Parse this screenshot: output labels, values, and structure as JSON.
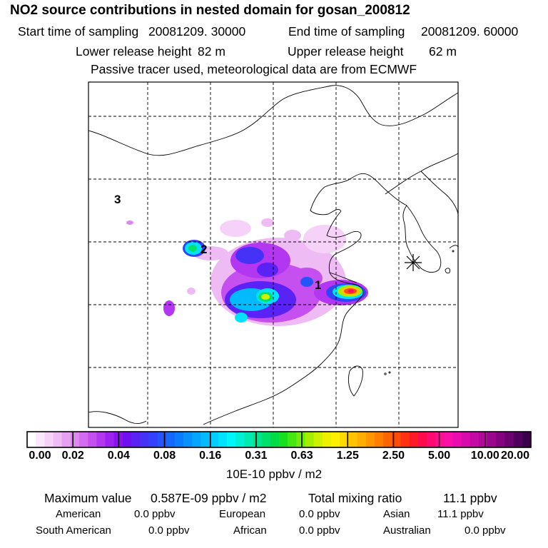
{
  "title": "NO2 source contributions in nested domain for gosan_200812",
  "sampling": {
    "start_label": "Start time of sampling",
    "start_value": "20081209. 30000",
    "end_label": "End time of sampling",
    "end_value": "20081209. 60000"
  },
  "release": {
    "lower_label": "Lower release height",
    "lower_value": "82 m",
    "upper_label": "Upper release height",
    "upper_value": "62 m"
  },
  "tracer_note": "Passive tracer used, meteorological data are from ECMWF",
  "map": {
    "source_labels": [
      "1",
      "2",
      "3"
    ],
    "receptor_marker": "receptor-star"
  },
  "colorbar": {
    "tick_labels": [
      "0.00",
      "0.02",
      "0.04",
      "0.08",
      "0.16",
      "0.31",
      "0.63",
      "1.25",
      "2.50",
      "5.00",
      "10.00",
      "20.00"
    ],
    "units": "10E-10 ppbv / m2",
    "colors": [
      "#ffffff",
      "#fce8fc",
      "#f6d2f8",
      "#efbbf4",
      "#e6a2f2",
      "#dc88ef",
      "#d56cf0",
      "#c64ff0",
      "#b336f0",
      "#9e22f0",
      "#8a12f0",
      "#7010f0",
      "#5a22f4",
      "#4632f6",
      "#3342f8",
      "#2454fa",
      "#1468fc",
      "#0a7cfe",
      "#0892fe",
      "#06a6fe",
      "#04bafe",
      "#02cefe",
      "#00e2fe",
      "#00f6fa",
      "#00f0d6",
      "#00eab2",
      "#00e48e",
      "#00e06a",
      "#00dc46",
      "#18e020",
      "#48e610",
      "#76ea08",
      "#a4ee04",
      "#ccf200",
      "#eef000",
      "#fff000",
      "#ffda00",
      "#ffc400",
      "#ffae00",
      "#ff9600",
      "#ff7e00",
      "#ff6400",
      "#ff4a08",
      "#ff3214",
      "#ff1a28",
      "#ff0a4a",
      "#ff0a6e",
      "#ff1090",
      "#f810a8",
      "#ea0eb0",
      "#d80cac",
      "#c40aa4",
      "#b0089a",
      "#9a068e",
      "#840480",
      "#6c0270",
      "#52005e",
      "#3a004c"
    ]
  },
  "summary": {
    "max_label": "Maximum value",
    "max_value": "0.587E-09 ppbv / m2",
    "total_label": "Total mixing ratio",
    "total_value": "11.1 ppbv",
    "american_label": "American",
    "american_value": "0.0 ppbv",
    "european_label": "European",
    "european_value": "0.0 ppbv",
    "asian_label": "Asian",
    "asian_value": "11.1 ppbv",
    "south_american_label": "South American",
    "south_american_value": "0.0 ppbv",
    "african_label": "African",
    "african_value": "0.0 ppbv",
    "australian_label": "Australian",
    "australian_value": "0.0 ppbv"
  }
}
